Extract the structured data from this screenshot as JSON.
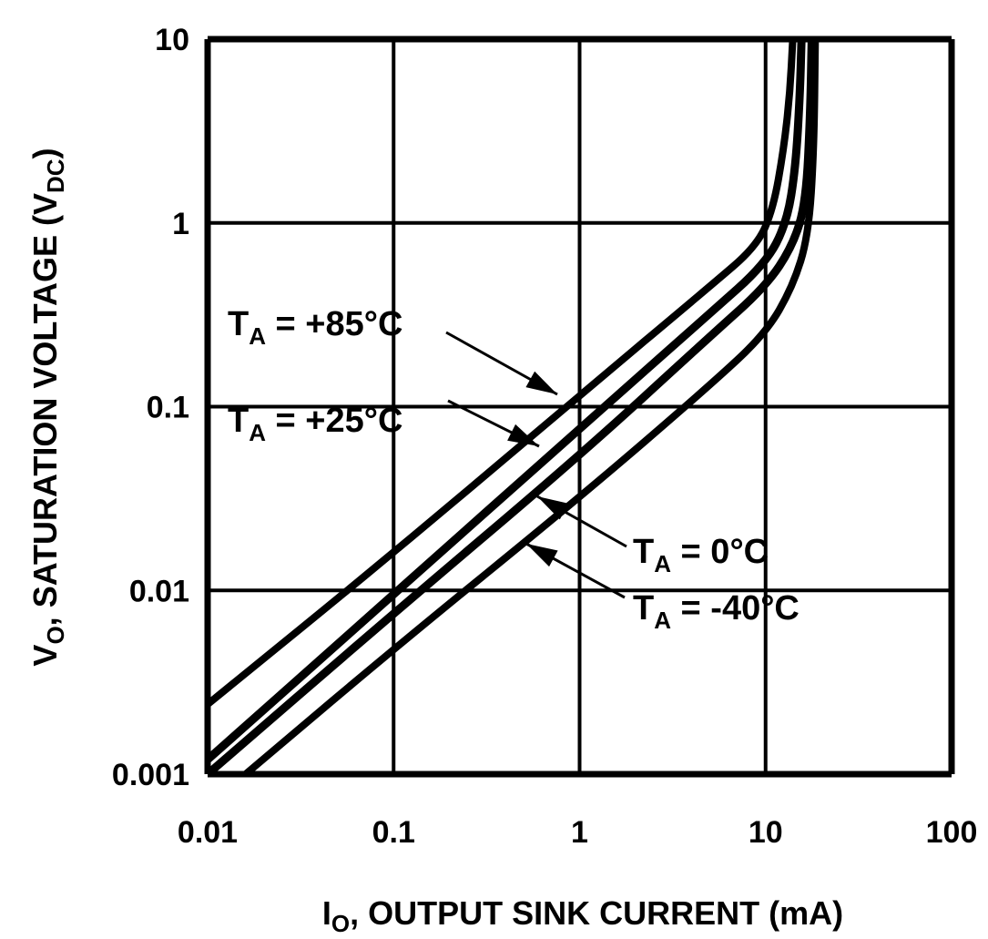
{
  "chart_data": {
    "type": "line",
    "title": "",
    "xlabel": {
      "main": "I",
      "sub": "O",
      "rest": ", OUTPUT SINK CURRENT (mA)"
    },
    "ylabel": {
      "main": "V",
      "sub": "O",
      "rest": ", SATURATION VOLTAGE (V",
      "sub2": "DC",
      "end": ")"
    },
    "xscale": "log",
    "yscale": "log",
    "xlim": [
      0.01,
      100
    ],
    "ylim": [
      0.001,
      10
    ],
    "xticks": [
      "0.01",
      "0.1",
      "1",
      "10",
      "100"
    ],
    "yticks": [
      "0.001",
      "0.01",
      "0.1",
      "1",
      "10"
    ],
    "grid": true,
    "line_color": "#000000",
    "series": [
      {
        "name": {
          "main": "T",
          "sub": "A",
          "rest": " = +85°C"
        },
        "x": [
          0.01,
          0.1,
          1,
          5,
          9,
          11,
          12.5,
          13.5,
          14
        ],
        "y": [
          0.0024,
          0.016,
          0.115,
          0.45,
          0.75,
          1.2,
          2.5,
          5,
          10
        ]
      },
      {
        "name": {
          "main": "T",
          "sub": "A",
          "rest": " = +25°C"
        },
        "x": [
          0.01,
          0.1,
          1,
          5,
          10,
          13,
          14.5,
          15.3,
          15.6
        ],
        "y": [
          0.0012,
          0.0095,
          0.076,
          0.32,
          0.6,
          1.0,
          2.0,
          5,
          10
        ]
      },
      {
        "name": {
          "main": "T",
          "sub": "A",
          "rest": " = 0°C"
        },
        "x": [
          0.01,
          0.1,
          1,
          5,
          10,
          14,
          16.5,
          17.4,
          17.7
        ],
        "y": [
          0.001,
          0.0075,
          0.054,
          0.24,
          0.45,
          0.75,
          1.3,
          4,
          10
        ]
      },
      {
        "name": {
          "main": "T",
          "sub": "A",
          "rest": " = -40°C"
        },
        "x": [
          0.016,
          0.1,
          1,
          5,
          10,
          14,
          17,
          18.2,
          18.5
        ],
        "y": [
          0.001,
          0.0048,
          0.032,
          0.13,
          0.25,
          0.45,
          0.85,
          2.5,
          10
        ]
      }
    ]
  }
}
